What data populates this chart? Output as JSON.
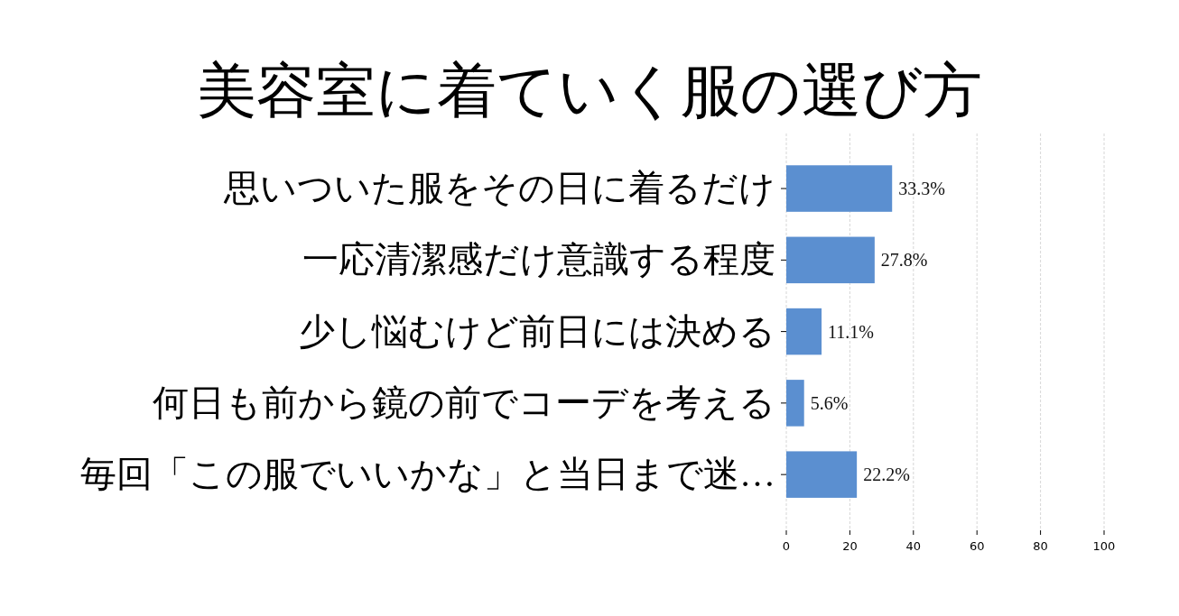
{
  "chart_data": {
    "type": "bar",
    "orientation": "horizontal",
    "title": "美容室に着ていく服の選び方",
    "categories": [
      "思いついた服をその日に着るだけ",
      "一応清潔感だけ意識する程度",
      "少し悩むけど前日には決める",
      "何日も前から鏡の前でコーデを考える",
      "毎回「この服でいいかな」と当日まで迷…"
    ],
    "values": [
      33.3,
      27.8,
      11.1,
      5.6,
      22.2
    ],
    "value_labels": [
      "33.3%",
      "27.8%",
      "11.1%",
      "5.6%",
      "22.2%"
    ],
    "color": "#5b8fd0",
    "xlim": [
      0,
      100
    ],
    "xticks": [
      0,
      20,
      40,
      60,
      80,
      100
    ],
    "grid": "x"
  }
}
